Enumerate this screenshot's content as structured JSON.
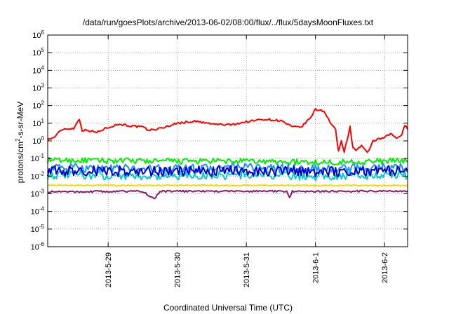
{
  "chart_data": {
    "type": "line",
    "title": "/data/run/goesPlots/archive/2013-06-02/08:00/flux/../flux/5daysMoonFluxes.txt",
    "xlabel": "Coordinated Universal Time (UTC)",
    "ylabel": {
      "prefix": "protons/cm",
      "sup": "2",
      "suffix": "-s-sr-MeV"
    },
    "y_scale": "log",
    "ylim": [
      1e-06,
      1000000.0
    ],
    "y_ticks": [
      {
        "value": 1e-06,
        "base": "10",
        "exp": "-6"
      },
      {
        "value": 1e-05,
        "base": "10",
        "exp": "-5"
      },
      {
        "value": 0.0001,
        "base": "10",
        "exp": "-4"
      },
      {
        "value": 0.001,
        "base": "10",
        "exp": "-3"
      },
      {
        "value": 0.01,
        "base": "10",
        "exp": "-2"
      },
      {
        "value": 0.1,
        "base": "10",
        "exp": "-1"
      },
      {
        "value": 1,
        "base": "10",
        "exp": "0"
      },
      {
        "value": 10,
        "base": "10",
        "exp": "1"
      },
      {
        "value": 100,
        "base": "10",
        "exp": "2"
      },
      {
        "value": 1000,
        "base": "10",
        "exp": "3"
      },
      {
        "value": 10000,
        "base": "10",
        "exp": "4"
      },
      {
        "value": 100000,
        "base": "10",
        "exp": "5"
      },
      {
        "value": 1000000,
        "base": "10",
        "exp": "6"
      }
    ],
    "xlim": [
      "2013-05-28T03:00",
      "2013-06-02T08:00"
    ],
    "x_ticks": [
      {
        "value": "2013-05-29T00:00",
        "label": "2013-5-29"
      },
      {
        "value": "2013-05-30T00:00",
        "label": "2013-5-30"
      },
      {
        "value": "2013-05-31T00:00",
        "label": "2013-5-31"
      },
      {
        "value": "2013-06-01T00:00",
        "label": "2013-6-1"
      },
      {
        "value": "2013-06-02T00:00",
        "label": "2013-6-2"
      }
    ],
    "grid": true,
    "series": [
      {
        "color": "#ff0000",
        "noise": 0.06,
        "points": [
          [
            "2013-05-28T03:00",
            1.2
          ],
          [
            "2013-05-28T05:00",
            1.5
          ],
          [
            "2013-05-28T08:00",
            4.5
          ],
          [
            "2013-05-28T10:00",
            5
          ],
          [
            "2013-05-28T12:00",
            5
          ],
          [
            "2013-05-28T14:00",
            18
          ],
          [
            "2013-05-28T15:00",
            4
          ],
          [
            "2013-05-28T17:00",
            4
          ],
          [
            "2013-05-28T20:00",
            3
          ],
          [
            "2013-05-29T00:00",
            6
          ],
          [
            "2013-05-29T04:00",
            9
          ],
          [
            "2013-05-29T08:00",
            7
          ],
          [
            "2013-05-29T12:00",
            6
          ],
          [
            "2013-05-29T14:00",
            4
          ],
          [
            "2013-05-29T18:00",
            5
          ],
          [
            "2013-05-30T00:00",
            10
          ],
          [
            "2013-05-30T06:00",
            13
          ],
          [
            "2013-05-30T12:00",
            9
          ],
          [
            "2013-05-30T18:00",
            8
          ],
          [
            "2013-05-31T00:00",
            12
          ],
          [
            "2013-05-31T06:00",
            17
          ],
          [
            "2013-05-31T12:00",
            14
          ],
          [
            "2013-05-31T16:00",
            6
          ],
          [
            "2013-05-31T19:00",
            6
          ],
          [
            "2013-05-31T22:00",
            18
          ],
          [
            "2013-06-01T00:00",
            60
          ],
          [
            "2013-06-01T03:00",
            50
          ],
          [
            "2013-06-01T05:00",
            12
          ],
          [
            "2013-06-01T07:00",
            4
          ],
          [
            "2013-06-01T08:00",
            0.25
          ],
          [
            "2013-06-01T09:00",
            1
          ],
          [
            "2013-06-01T10:00",
            0.25
          ],
          [
            "2013-06-01T12:00",
            6
          ],
          [
            "2013-06-01T13:00",
            0.4
          ],
          [
            "2013-06-01T14:00",
            0.3
          ],
          [
            "2013-06-01T16:00",
            0.5
          ],
          [
            "2013-06-01T18:00",
            0.2
          ],
          [
            "2013-06-01T20:00",
            1
          ],
          [
            "2013-06-02T00:00",
            1.5
          ],
          [
            "2013-06-02T02:00",
            2.5
          ],
          [
            "2013-06-02T04:00",
            1.5
          ],
          [
            "2013-06-02T06:00",
            2
          ],
          [
            "2013-06-02T07:00",
            8
          ],
          [
            "2013-06-02T08:00",
            5
          ]
        ]
      },
      {
        "color": "#00ee00",
        "noise": 0.16,
        "points": [
          [
            "2013-05-28T03:00",
            0.08
          ],
          [
            "2013-05-30T00:00",
            0.07
          ],
          [
            "2013-05-31T00:00",
            0.07
          ],
          [
            "2013-06-01T00:00",
            0.06
          ],
          [
            "2013-06-02T00:00",
            0.07
          ],
          [
            "2013-06-02T08:00",
            0.08
          ]
        ]
      },
      {
        "color": "#1e90ff",
        "noise": 0.25,
        "points": [
          [
            "2013-05-28T03:00",
            0.03
          ],
          [
            "2013-05-30T00:00",
            0.025
          ],
          [
            "2013-05-31T00:00",
            0.03
          ],
          [
            "2013-06-01T00:00",
            0.025
          ],
          [
            "2013-06-02T00:00",
            0.03
          ],
          [
            "2013-06-02T08:00",
            0.03
          ]
        ]
      },
      {
        "color": "#00cccc",
        "noise": 0.25,
        "points": [
          [
            "2013-05-28T03:00",
            0.012
          ],
          [
            "2013-05-30T00:00",
            0.01
          ],
          [
            "2013-05-31T00:00",
            0.012
          ],
          [
            "2013-06-01T00:00",
            0.01
          ],
          [
            "2013-06-02T00:00",
            0.012
          ],
          [
            "2013-06-02T08:00",
            0.012
          ]
        ]
      },
      {
        "color": "#0000cc",
        "noise": 0.3,
        "points": [
          [
            "2013-05-28T03:00",
            0.02
          ],
          [
            "2013-05-30T00:00",
            0.018
          ],
          [
            "2013-05-31T00:00",
            0.02
          ],
          [
            "2013-06-01T00:00",
            0.018
          ],
          [
            "2013-06-02T00:00",
            0.02
          ],
          [
            "2013-06-02T08:00",
            0.02
          ]
        ]
      },
      {
        "color": "#ffd700",
        "noise": 0.03,
        "points": [
          [
            "2013-05-28T03:00",
            0.003
          ],
          [
            "2013-05-30T00:00",
            0.003
          ],
          [
            "2013-05-31T00:00",
            0.003
          ],
          [
            "2013-06-01T00:00",
            0.003
          ],
          [
            "2013-06-02T00:00",
            0.003
          ],
          [
            "2013-06-02T08:00",
            0.003
          ]
        ]
      },
      {
        "color": "#8b1a62",
        "noise": 0.05,
        "points": [
          [
            "2013-05-28T03:00",
            0.0013
          ],
          [
            "2013-05-29T12:00",
            0.0014
          ],
          [
            "2013-05-29T16:00",
            0.0005
          ],
          [
            "2013-05-29T18:00",
            0.0014
          ],
          [
            "2013-05-31T14:00",
            0.0014
          ],
          [
            "2013-05-31T15:00",
            0.0006
          ],
          [
            "2013-05-31T16:00",
            0.0014
          ],
          [
            "2013-06-02T08:00",
            0.0014
          ]
        ]
      }
    ]
  }
}
